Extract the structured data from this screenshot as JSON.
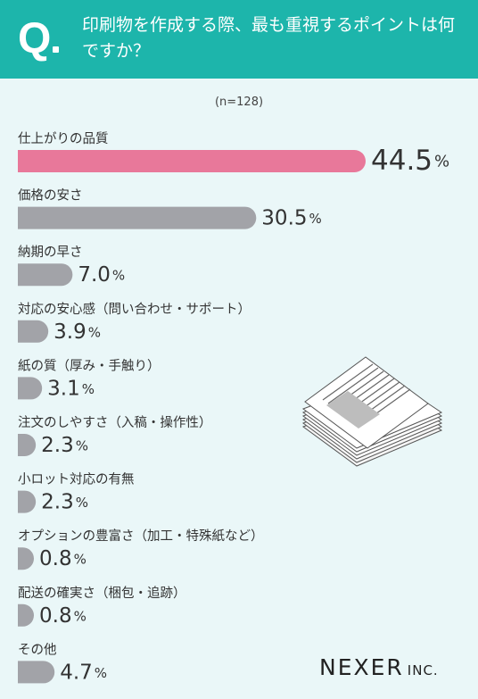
{
  "header": {
    "q_letter": "Q",
    "question": "印刷物を作成する際、最も重視するポイントは何ですか？"
  },
  "sample_label": "(n=128)",
  "brand": {
    "name": "NEXER",
    "suffix": "INC."
  },
  "colors": {
    "header": "#1db5ab",
    "highlight": "#e8789a",
    "bar": "#a2a3a8",
    "background": "#eaf7f8"
  },
  "illustration_icon": "paper-stack-icon",
  "chart_data": {
    "type": "bar",
    "orientation": "horizontal",
    "unit": "%",
    "categories": [
      "仕上がりの品質",
      "価格の安さ",
      "納期の早さ",
      "対応の安心感（問い合わせ・サポート）",
      "紙の質（厚み・手触り）",
      "注文のしやすさ（入稿・操作性）",
      "小ロット対応の有無",
      "オプションの豊富さ（加工・特殊紙など）",
      "配送の確実さ（梱包・追跡）",
      "その他"
    ],
    "values": [
      44.5,
      30.5,
      7.0,
      3.9,
      3.1,
      2.3,
      2.3,
      0.8,
      0.8,
      4.7
    ],
    "value_labels": [
      "44.5",
      "30.5",
      "7.0",
      "3.9",
      "3.1",
      "2.3",
      "2.3",
      "0.8",
      "0.8",
      "4.7"
    ],
    "highlight_index": 0,
    "xlim": [
      0,
      44.5
    ]
  }
}
